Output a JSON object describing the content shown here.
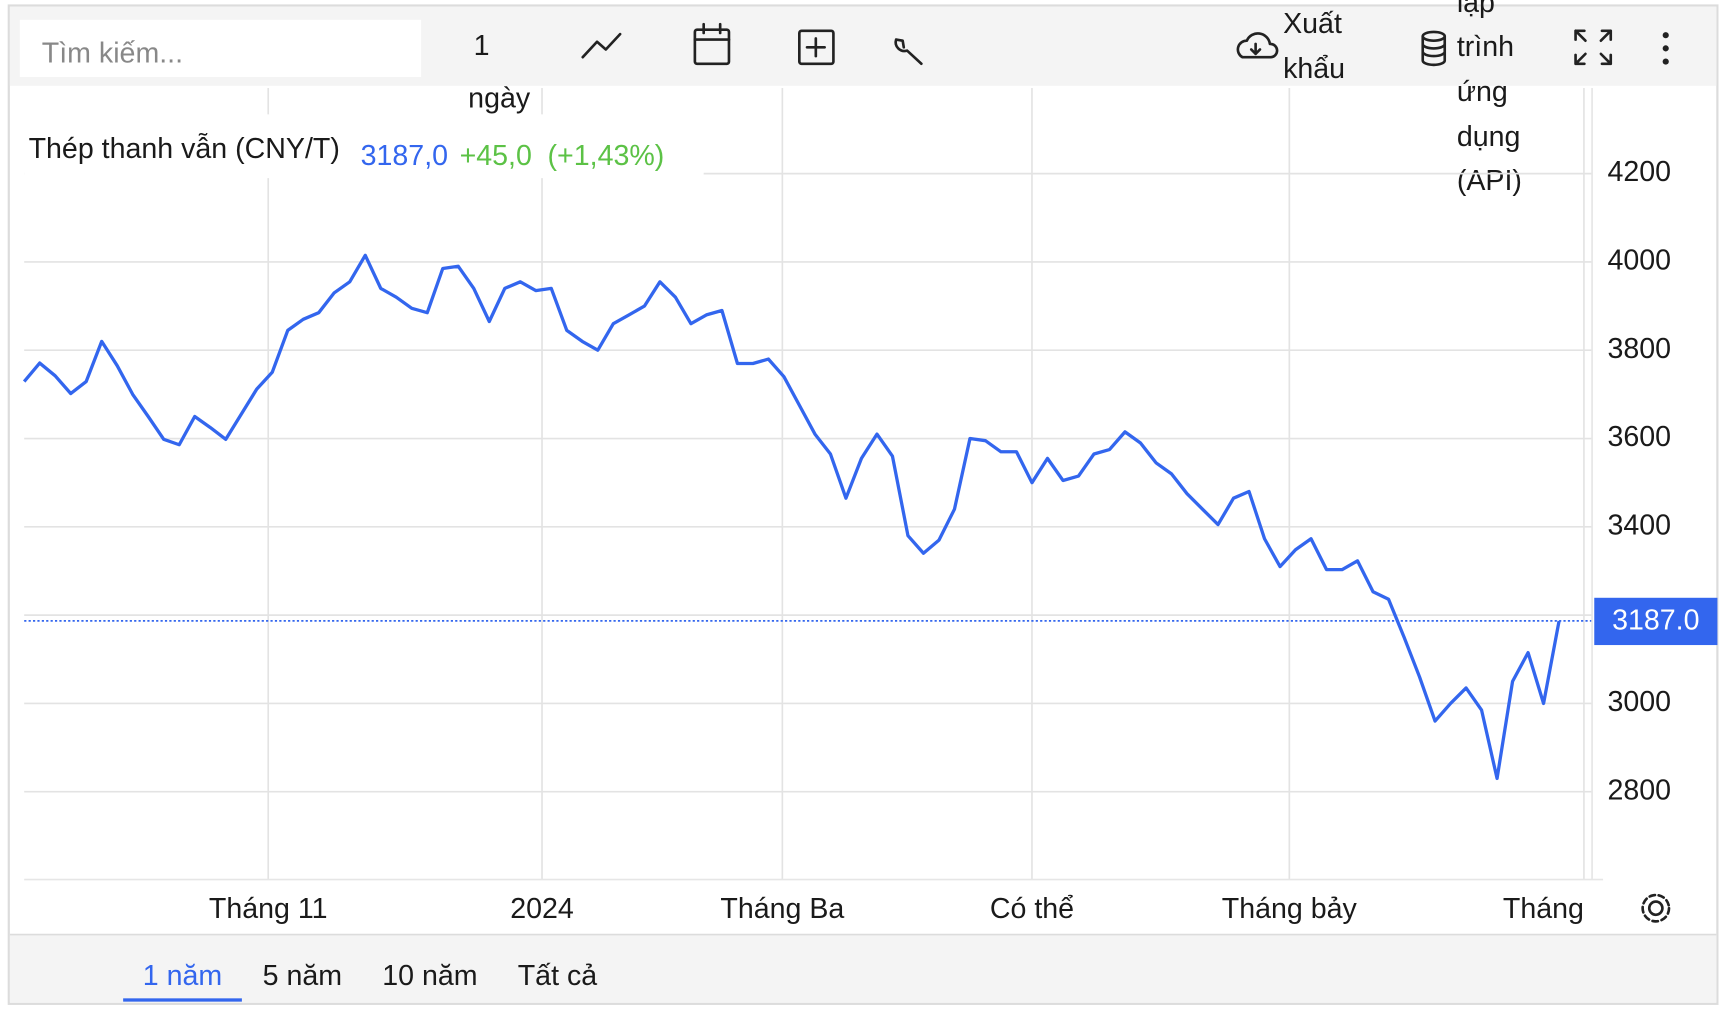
{
  "toolbar": {
    "search_placeholder": "Tìm kiếm...",
    "interval": "1",
    "interval_unit": "ngày",
    "export": [
      "Xuất",
      "khẩu"
    ],
    "api": [
      "lập",
      "trình",
      "ứng",
      "dụng",
      "(API)"
    ]
  },
  "chart_data": {
    "type": "line",
    "series": [
      {
        "name": "Thép thanh vẫn (CNY/T)",
        "color": "#3366ee",
        "values": [
          3729,
          3771,
          3742,
          3702,
          3729,
          3820,
          3765,
          3700,
          3650,
          3598,
          3586,
          3650,
          3625,
          3598,
          3655,
          3712,
          3750,
          3845,
          3870,
          3885,
          3930,
          3955,
          4015,
          3940,
          3920,
          3895,
          3885,
          3985,
          3990,
          3940,
          3865,
          3940,
          3955,
          3935,
          3940,
          3845,
          3820,
          3800,
          3860,
          3880,
          3900,
          3955,
          3920,
          3860,
          3880,
          3890,
          3770,
          3770,
          3780,
          3740,
          3675,
          3610,
          3565,
          3465,
          3555,
          3610,
          3560,
          3380,
          3340,
          3370,
          3440,
          3600,
          3595,
          3570,
          3570,
          3500,
          3555,
          3505,
          3515,
          3565,
          3575,
          3615,
          3590,
          3545,
          3520,
          3475,
          3440,
          3405,
          3465,
          3480,
          3373,
          3310,
          3348,
          3373,
          3303,
          3303,
          3323,
          3253,
          3236,
          3150,
          3060,
          2960,
          3000,
          3035,
          2985,
          2830,
          3050,
          3115,
          3000,
          3187
        ]
      }
    ],
    "legend_value": "3187,0",
    "legend_change": "+45,0",
    "legend_change_percent": "(+1,43%)",
    "last_value_label": "3187.0",
    "xlim": [
      0,
      100.7
    ],
    "xticks": [
      {
        "value": 15.74,
        "label": "Tháng 11"
      },
      {
        "value": 33.4,
        "label": "2024"
      },
      {
        "value": 48.9,
        "label": "Tháng Ba"
      },
      {
        "value": 65.0,
        "label": "Có thể"
      },
      {
        "value": 81.6,
        "label": "Tháng bảy"
      },
      {
        "value": 100.6,
        "label": "Tháng"
      }
    ],
    "ylim": [
      2601,
      4394
    ],
    "yticks": [
      2800,
      3000,
      3200,
      3400,
      3600,
      3800,
      4000,
      4200
    ],
    "grid": true
  },
  "range_buttons": [
    "1 năm",
    "5 năm",
    "10 năm",
    "Tất cả"
  ]
}
